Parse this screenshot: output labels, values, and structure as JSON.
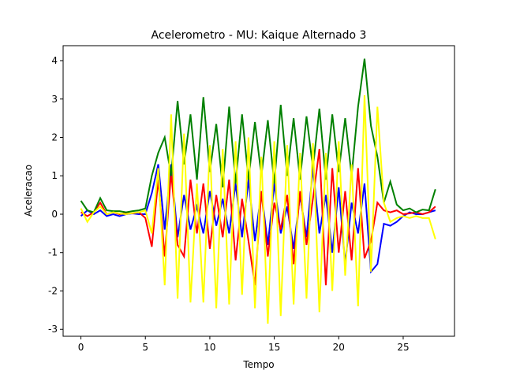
{
  "chart_data": {
    "type": "line",
    "title": "Acelerometro - MU: Kaique Alternado 3",
    "x_label": "Tempo",
    "y_label": "Aceleracao",
    "x": [
      0,
      0.5,
      1,
      1.5,
      2,
      2.5,
      3,
      3.5,
      4,
      4.5,
      5,
      5.5,
      6,
      6.5,
      7,
      7.5,
      8,
      8.5,
      9,
      9.5,
      10,
      10.5,
      11,
      11.5,
      12,
      12.5,
      13,
      13.5,
      14,
      14.5,
      15,
      15.5,
      16,
      16.5,
      17,
      17.5,
      18,
      18.5,
      19,
      19.5,
      20,
      20.5,
      21,
      21.5,
      22,
      22.5,
      23,
      23.5,
      24,
      24.5,
      25,
      25.5,
      26,
      26.5,
      27,
      27.5
    ],
    "series": [
      {
        "color": "#0000ff",
        "values": [
          -0.05,
          0.1,
          0.0,
          0.1,
          -0.05,
          0.0,
          -0.05,
          0.0,
          0.02,
          0.0,
          0.0,
          0.55,
          1.3,
          -0.4,
          1.3,
          -0.6,
          0.5,
          -0.4,
          0.2,
          -0.5,
          0.6,
          -0.3,
          0.4,
          -0.5,
          0.8,
          -0.6,
          0.9,
          -0.7,
          0.6,
          -0.8,
          0.8,
          -0.5,
          0.2,
          -0.9,
          0.5,
          -0.6,
          1.2,
          -0.5,
          0.5,
          -1.0,
          0.7,
          -1.3,
          0.3,
          -0.5,
          0.8,
          -1.5,
          -1.3,
          -0.25,
          -0.3,
          -0.2,
          -0.05,
          0.05,
          0.0,
          0.0,
          0.05,
          0.1
        ]
      },
      {
        "color": "#ff0000",
        "values": [
          0.05,
          -0.05,
          0.05,
          0.3,
          0.0,
          0.05,
          0.0,
          0.03,
          0.02,
          0.05,
          -0.1,
          -0.85,
          0.9,
          -1.1,
          1.1,
          -0.8,
          -1.1,
          0.9,
          -0.5,
          0.8,
          -0.9,
          0.5,
          -0.6,
          0.9,
          -1.2,
          0.4,
          -0.7,
          -1.85,
          0.6,
          -1.1,
          0.3,
          -0.4,
          0.5,
          -1.3,
          0.6,
          -0.8,
          0.4,
          1.7,
          -1.85,
          1.2,
          -1.0,
          0.6,
          -1.2,
          1.2,
          -1.15,
          -0.7,
          0.3,
          0.1,
          0.05,
          0.1,
          0.0,
          0.02,
          0.05,
          0.0,
          0.05,
          0.2
        ]
      },
      {
        "color": "#008000",
        "values": [
          0.35,
          0.1,
          0.05,
          0.42,
          0.1,
          0.08,
          0.08,
          0.05,
          0.08,
          0.1,
          0.15,
          1.0,
          1.6,
          2.0,
          1.0,
          2.95,
          1.3,
          2.6,
          0.9,
          3.05,
          1.1,
          2.35,
          0.7,
          2.8,
          0.8,
          2.6,
          0.9,
          2.4,
          1.0,
          2.45,
          0.8,
          2.85,
          1.0,
          2.5,
          0.9,
          2.55,
          1.2,
          2.75,
          0.9,
          2.6,
          1.1,
          2.5,
          1.0,
          2.8,
          4.05,
          2.3,
          1.5,
          0.3,
          0.85,
          0.25,
          0.1,
          0.15,
          0.05,
          0.12,
          0.1,
          0.65
        ]
      },
      {
        "color": "#ffff00",
        "values": [
          0.15,
          -0.2,
          0.05,
          0.2,
          0.0,
          0.05,
          0.02,
          0.0,
          0.03,
          0.05,
          0.1,
          -0.5,
          1.2,
          -1.85,
          2.6,
          -2.2,
          2.1,
          -2.3,
          0.8,
          -2.3,
          1.8,
          -2.45,
          1.7,
          -2.35,
          1.9,
          -2.1,
          2.0,
          -2.45,
          1.5,
          -2.85,
          1.9,
          -2.65,
          1.8,
          -2.35,
          1.6,
          -2.2,
          1.85,
          -2.55,
          1.6,
          -2.0,
          1.9,
          -1.6,
          1.3,
          -2.4,
          3.1,
          -1.5,
          2.8,
          0.3,
          -0.2,
          -0.1,
          -0.05,
          -0.1,
          -0.05,
          -0.1,
          -0.1,
          -0.65
        ]
      }
    ],
    "xlim": [
      -1.38,
      28.98
    ],
    "ylim": [
      -3.18,
      4.39
    ],
    "xticks": [
      0,
      5,
      10,
      15,
      20,
      25
    ],
    "yticks": [
      -3,
      -2,
      -1,
      0,
      1,
      2,
      3,
      4
    ]
  }
}
